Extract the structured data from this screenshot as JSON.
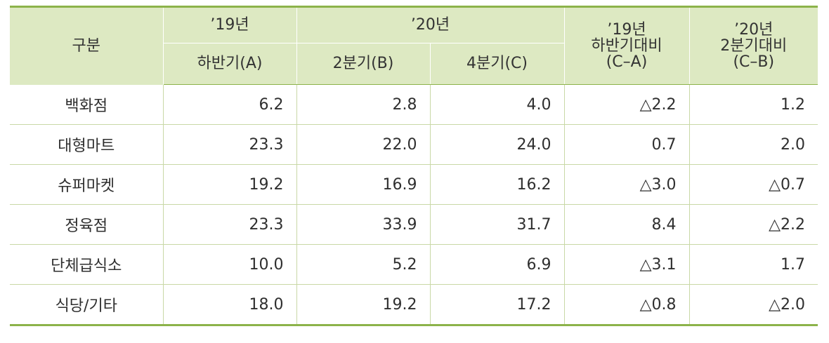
{
  "header": {
    "category": "구분",
    "y19": "’19년",
    "y20": "’20년",
    "h2_a": "하반기(A)",
    "q2_b": "2분기(B)",
    "q4_c": "4분기(C)",
    "cmp_a_lines": [
      "’19년",
      "하반기대비",
      "(C–A)"
    ],
    "cmp_b_lines": [
      "’20년",
      "2분기대비",
      "(C–B)"
    ]
  },
  "rows": [
    {
      "name": "백화점",
      "a": "6.2",
      "b": "2.8",
      "c": "4.0",
      "ca": "△2.2",
      "cb": "1.2"
    },
    {
      "name": "대형마트",
      "a": "23.3",
      "b": "22.0",
      "c": "24.0",
      "ca": "0.7",
      "cb": "2.0"
    },
    {
      "name": "슈퍼마켓",
      "a": "19.2",
      "b": "16.9",
      "c": "16.2",
      "ca": "△3.0",
      "cb": "△0.7"
    },
    {
      "name": "정육점",
      "a": "23.3",
      "b": "33.9",
      "c": "31.7",
      "ca": "8.4",
      "cb": "△2.2"
    },
    {
      "name": "단체급식소",
      "a": "10.0",
      "b": "5.2",
      "c": "6.9",
      "ca": "△3.1",
      "cb": "1.7"
    },
    {
      "name": "식당/기타",
      "a": "18.0",
      "b": "19.2",
      "c": "17.2",
      "ca": "△0.8",
      "cb": "△2.0"
    }
  ]
}
